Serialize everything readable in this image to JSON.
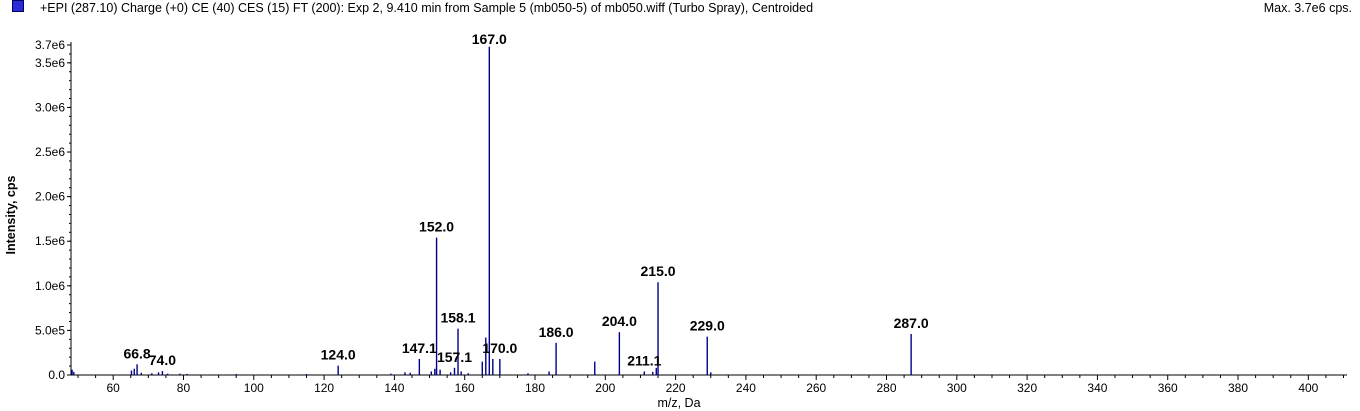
{
  "header": {
    "title": "+EPI (287.10) Charge (+0) CE (40) CES (15) FT (200): Exp 2, 9.410 min from Sample 5 (mb050-5) of mb050.wiff (Turbo Spray), Centroided",
    "max_label": "Max. 3.7e6 cps.",
    "series_color": "#2b2bd6"
  },
  "chart_data": {
    "type": "bar",
    "title": "+EPI (287.10) Charge (+0) CE (40) CES (15) FT (200): Exp 2, 9.410 min from Sample 5 (mb050-5) of mb050.wiff (Turbo Spray), Centroided",
    "xlabel": "m/z, Da",
    "ylabel": "Intensity, cps",
    "xlim": [
      48,
      411
    ],
    "ylim": [
      0,
      3700000.0
    ],
    "grid": false,
    "bar_color": "#00008b",
    "x_ticks": [
      60,
      80,
      100,
      120,
      140,
      160,
      180,
      200,
      220,
      240,
      260,
      280,
      300,
      320,
      340,
      360,
      380,
      400
    ],
    "y_ticks": [
      {
        "value": 0,
        "label": "0.0"
      },
      {
        "value": 500000,
        "label": "5.0e5"
      },
      {
        "value": 1000000,
        "label": "1.0e6"
      },
      {
        "value": 1500000,
        "label": "1.5e6"
      },
      {
        "value": 2000000,
        "label": "2.0e6"
      },
      {
        "value": 2500000,
        "label": "2.5e6"
      },
      {
        "value": 3000000,
        "label": "3.0e6"
      },
      {
        "value": 3500000,
        "label": "3.5e6"
      },
      {
        "value": 3700000,
        "label": "3.7e6"
      }
    ],
    "peaks": [
      {
        "mz": 48.3,
        "intensity": 60000
      },
      {
        "mz": 48.8,
        "intensity": 35000
      },
      {
        "mz": 65.2,
        "intensity": 50000
      },
      {
        "mz": 66.0,
        "intensity": 70000
      },
      {
        "mz": 66.8,
        "intensity": 120000
      },
      {
        "mz": 68.0,
        "intensity": 25000
      },
      {
        "mz": 71.0,
        "intensity": 20000
      },
      {
        "mz": 72.9,
        "intensity": 30000
      },
      {
        "mz": 74.0,
        "intensity": 45000
      },
      {
        "mz": 75.5,
        "intensity": 15000
      },
      {
        "mz": 79.0,
        "intensity": 15000
      },
      {
        "mz": 81.0,
        "intensity": 12000
      },
      {
        "mz": 95.0,
        "intensity": 10000
      },
      {
        "mz": 115.0,
        "intensity": 10000
      },
      {
        "mz": 124.0,
        "intensity": 105000
      },
      {
        "mz": 139.0,
        "intensity": 15000
      },
      {
        "mz": 143.0,
        "intensity": 30000
      },
      {
        "mz": 144.5,
        "intensity": 25000
      },
      {
        "mz": 147.1,
        "intensity": 180000
      },
      {
        "mz": 150.5,
        "intensity": 40000
      },
      {
        "mz": 151.5,
        "intensity": 70000
      },
      {
        "mz": 152.0,
        "intensity": 1540000
      },
      {
        "mz": 153.0,
        "intensity": 60000
      },
      {
        "mz": 156.0,
        "intensity": 30000
      },
      {
        "mz": 157.1,
        "intensity": 80000
      },
      {
        "mz": 158.1,
        "intensity": 520000
      },
      {
        "mz": 159.0,
        "intensity": 40000
      },
      {
        "mz": 161.0,
        "intensity": 20000
      },
      {
        "mz": 165.0,
        "intensity": 150000
      },
      {
        "mz": 166.0,
        "intensity": 420000
      },
      {
        "mz": 167.0,
        "intensity": 3680000
      },
      {
        "mz": 168.0,
        "intensity": 180000
      },
      {
        "mz": 170.0,
        "intensity": 180000
      },
      {
        "mz": 178.0,
        "intensity": 20000
      },
      {
        "mz": 184.0,
        "intensity": 40000
      },
      {
        "mz": 186.0,
        "intensity": 360000
      },
      {
        "mz": 197.0,
        "intensity": 150000
      },
      {
        "mz": 204.0,
        "intensity": 480000
      },
      {
        "mz": 211.1,
        "intensity": 40000
      },
      {
        "mz": 213.5,
        "intensity": 35000
      },
      {
        "mz": 214.5,
        "intensity": 80000
      },
      {
        "mz": 215.0,
        "intensity": 1040000
      },
      {
        "mz": 229.0,
        "intensity": 430000
      },
      {
        "mz": 230.0,
        "intensity": 30000
      },
      {
        "mz": 287.0,
        "intensity": 460000
      }
    ],
    "labels": [
      {
        "text": "66.8",
        "mz": 66.8,
        "intensity": 120000
      },
      {
        "text": "74.0",
        "mz": 74.0,
        "intensity": 45000
      },
      {
        "text": "124.0",
        "mz": 124.0,
        "intensity": 105000
      },
      {
        "text": "147.1",
        "mz": 147.1,
        "intensity": 180000
      },
      {
        "text": "152.0",
        "mz": 152.0,
        "intensity": 1540000
      },
      {
        "text": "157.1",
        "mz": 157.1,
        "intensity": 80000
      },
      {
        "text": "158.1",
        "mz": 158.1,
        "intensity": 520000
      },
      {
        "text": "167.0",
        "mz": 167.0,
        "intensity": 3680000
      },
      {
        "text": "170.0",
        "mz": 170.0,
        "intensity": 180000
      },
      {
        "text": "186.0",
        "mz": 186.0,
        "intensity": 360000
      },
      {
        "text": "204.0",
        "mz": 204.0,
        "intensity": 480000
      },
      {
        "text": "211.1",
        "mz": 211.1,
        "intensity": 40000
      },
      {
        "text": "215.0",
        "mz": 215.0,
        "intensity": 1040000
      },
      {
        "text": "229.0",
        "mz": 229.0,
        "intensity": 430000
      },
      {
        "text": "287.0",
        "mz": 287.0,
        "intensity": 460000
      }
    ]
  }
}
